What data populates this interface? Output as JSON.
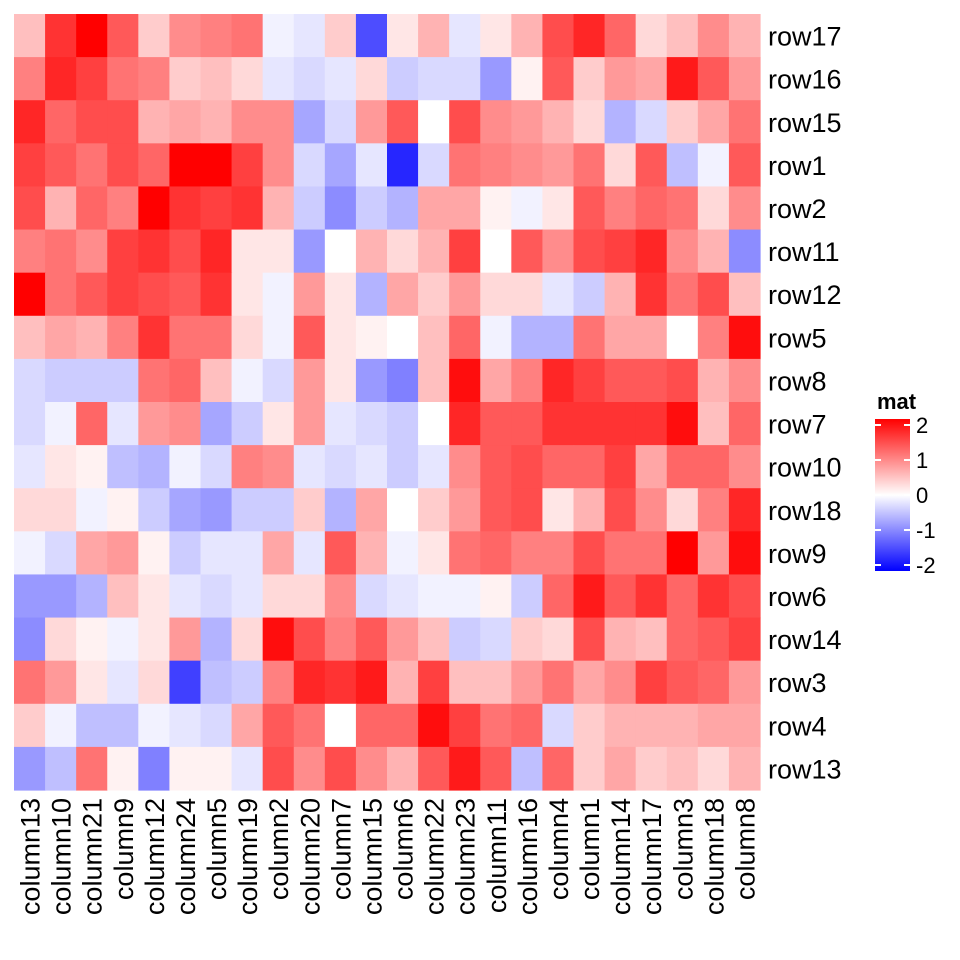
{
  "chart_data": {
    "type": "heatmap",
    "title": "",
    "row_labels": [
      "row17",
      "row16",
      "row15",
      "row1",
      "row2",
      "row11",
      "row12",
      "row5",
      "row8",
      "row7",
      "row10",
      "row18",
      "row9",
      "row6",
      "row14",
      "row3",
      "row4",
      "row13"
    ],
    "column_labels": [
      "column13",
      "column10",
      "column21",
      "column9",
      "column12",
      "column24",
      "column5",
      "column19",
      "column2",
      "column20",
      "column7",
      "column15",
      "column6",
      "column22",
      "column23",
      "column11",
      "column16",
      "column4",
      "column1",
      "column14",
      "column17",
      "column3",
      "column18",
      "column8"
    ],
    "values": [
      [
        0.5,
        1.6,
        2.0,
        1.3,
        0.4,
        0.9,
        1.0,
        1.1,
        -0.1,
        -0.2,
        0.4,
        -1.4,
        0.2,
        0.6,
        -0.2,
        0.2,
        0.6,
        1.4,
        1.7,
        1.2,
        0.3,
        0.5,
        0.9,
        0.6
      ],
      [
        1.0,
        1.7,
        1.5,
        1.1,
        1.0,
        0.4,
        0.5,
        0.3,
        -0.2,
        -0.3,
        -0.2,
        0.3,
        -0.4,
        -0.3,
        -0.3,
        -0.8,
        0.1,
        1.3,
        0.4,
        0.8,
        0.7,
        1.8,
        1.3,
        0.8
      ],
      [
        1.7,
        1.2,
        1.4,
        1.4,
        0.6,
        0.7,
        0.6,
        0.9,
        0.9,
        -0.7,
        -0.3,
        0.8,
        1.3,
        0.0,
        1.4,
        0.9,
        0.8,
        0.6,
        0.3,
        -0.6,
        -0.3,
        0.4,
        0.7,
        1.1
      ],
      [
        1.5,
        1.3,
        1.1,
        1.4,
        1.2,
        2.0,
        2.0,
        1.5,
        0.9,
        -0.3,
        -0.7,
        -0.2,
        -1.7,
        -0.3,
        1.1,
        1.0,
        0.9,
        0.8,
        1.1,
        0.3,
        1.3,
        -0.5,
        -0.1,
        1.3
      ],
      [
        1.4,
        0.6,
        1.2,
        1.0,
        2.0,
        1.6,
        1.5,
        1.6,
        0.6,
        -0.4,
        -0.9,
        -0.4,
        -0.6,
        0.7,
        0.7,
        0.1,
        -0.1,
        0.2,
        1.3,
        1.0,
        1.2,
        1.1,
        0.3,
        0.9
      ],
      [
        1.0,
        1.1,
        0.9,
        1.5,
        1.6,
        1.4,
        1.7,
        0.2,
        0.2,
        -0.8,
        0.0,
        0.6,
        0.3,
        0.6,
        1.5,
        0.0,
        1.3,
        0.9,
        1.4,
        1.5,
        1.7,
        0.9,
        0.6,
        -0.9
      ],
      [
        2.0,
        1.1,
        1.3,
        1.5,
        1.4,
        1.3,
        1.6,
        0.2,
        -0.1,
        0.8,
        0.2,
        -0.6,
        0.7,
        0.4,
        0.8,
        0.3,
        0.3,
        -0.2,
        -0.4,
        0.6,
        1.6,
        1.1,
        1.4,
        0.5
      ],
      [
        0.5,
        0.7,
        0.6,
        1.0,
        1.6,
        1.1,
        1.1,
        0.3,
        -0.1,
        1.3,
        0.2,
        0.1,
        0.0,
        0.5,
        1.2,
        -0.1,
        -0.6,
        -0.6,
        1.1,
        0.7,
        0.7,
        0.0,
        1.0,
        1.9
      ],
      [
        -0.3,
        -0.4,
        -0.4,
        -0.4,
        1.1,
        1.2,
        0.5,
        -0.1,
        -0.3,
        0.8,
        0.2,
        -0.8,
        -1.0,
        0.5,
        1.9,
        0.7,
        1.0,
        1.7,
        1.5,
        1.3,
        1.3,
        1.4,
        0.6,
        0.9
      ],
      [
        -0.3,
        -0.1,
        1.2,
        -0.2,
        0.8,
        0.9,
        -0.7,
        -0.4,
        0.2,
        0.8,
        -0.2,
        -0.3,
        -0.4,
        0.0,
        1.7,
        1.3,
        1.3,
        1.6,
        1.6,
        1.6,
        1.6,
        1.9,
        0.5,
        1.2
      ],
      [
        -0.2,
        0.2,
        0.1,
        -0.5,
        -0.6,
        -0.1,
        -0.3,
        1.0,
        0.9,
        -0.2,
        -0.3,
        -0.2,
        -0.4,
        -0.2,
        0.9,
        1.3,
        1.4,
        1.2,
        1.2,
        1.5,
        0.7,
        1.2,
        1.2,
        0.9
      ],
      [
        0.3,
        0.3,
        -0.1,
        0.1,
        -0.4,
        -0.7,
        -0.8,
        -0.4,
        -0.4,
        0.4,
        -0.6,
        0.7,
        0.0,
        0.4,
        0.8,
        1.3,
        1.4,
        0.2,
        0.6,
        1.4,
        0.9,
        0.3,
        1.0,
        1.7
      ],
      [
        -0.1,
        -0.3,
        0.7,
        0.8,
        0.1,
        -0.4,
        -0.2,
        -0.2,
        0.7,
        -0.2,
        1.3,
        0.6,
        -0.1,
        0.2,
        1.1,
        1.2,
        1.0,
        1.0,
        1.4,
        1.1,
        1.1,
        2.0,
        0.8,
        1.9
      ],
      [
        -0.8,
        -0.8,
        -0.6,
        0.5,
        0.2,
        -0.2,
        -0.3,
        -0.2,
        0.3,
        0.3,
        0.9,
        -0.3,
        -0.2,
        -0.1,
        -0.1,
        0.1,
        -0.4,
        1.2,
        1.8,
        1.3,
        1.6,
        1.2,
        1.6,
        1.4
      ],
      [
        -0.9,
        0.3,
        0.1,
        -0.1,
        0.2,
        0.8,
        -0.6,
        0.3,
        1.9,
        1.4,
        1.0,
        1.3,
        0.8,
        0.5,
        -0.4,
        -0.3,
        0.4,
        0.3,
        1.4,
        0.6,
        0.5,
        1.2,
        1.3,
        1.5
      ],
      [
        1.1,
        0.8,
        0.2,
        -0.2,
        0.3,
        -1.5,
        -0.5,
        -0.4,
        1.0,
        1.7,
        1.6,
        1.8,
        0.6,
        1.5,
        0.5,
        0.5,
        0.8,
        1.1,
        0.7,
        0.9,
        1.5,
        1.3,
        1.2,
        0.8
      ],
      [
        0.4,
        -0.1,
        -0.5,
        -0.5,
        -0.1,
        -0.2,
        -0.3,
        0.7,
        1.3,
        1.1,
        0.0,
        1.2,
        1.2,
        1.9,
        1.5,
        1.1,
        1.2,
        -0.3,
        0.4,
        0.6,
        0.6,
        0.6,
        0.7,
        0.7
      ],
      [
        -0.8,
        -0.5,
        1.1,
        0.1,
        -1.0,
        0.1,
        0.1,
        -0.2,
        1.4,
        0.9,
        1.4,
        0.9,
        0.6,
        1.3,
        1.8,
        1.3,
        -0.5,
        1.2,
        0.4,
        0.7,
        0.4,
        0.5,
        0.3,
        0.6
      ]
    ],
    "color_scale": {
      "min": -2,
      "mid": 0,
      "max": 2,
      "low_color": "#0000FF",
      "mid_color": "#FFFFFF",
      "high_color": "#FF0000"
    },
    "legend": {
      "title": "mat",
      "ticks": [
        2,
        1,
        0,
        -1,
        -2
      ],
      "placement": "right"
    }
  }
}
